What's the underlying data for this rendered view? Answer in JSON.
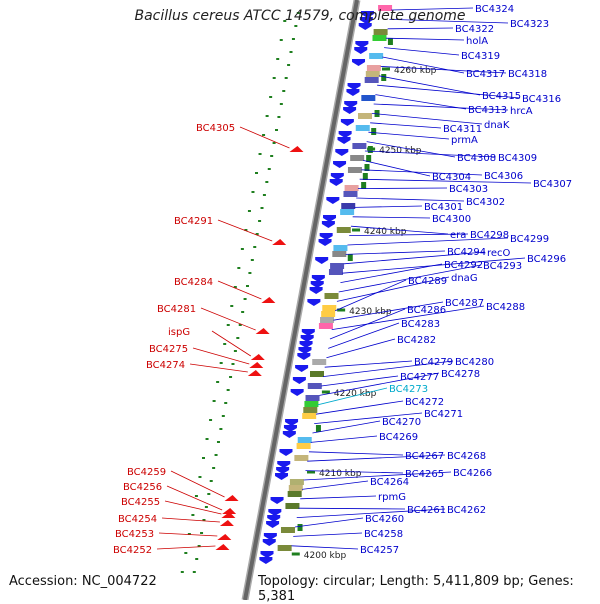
{
  "title": "Bacillus cereus ATCC 14579, complete genome",
  "footer": {
    "accession": "Accession: NC_004722",
    "summary": "Topology: circular; Length: 5,411,809 bp; Genes: 5,381"
  },
  "colors": {
    "backbone": "#666666",
    "forward_gene_label": "#0000cc",
    "reverse_gene_label": "#cc0000",
    "highlight_label": "#00aacc",
    "forward_arrow": "#1a1aee",
    "reverse_arrow": "#ee1111",
    "tick": "#1f7f1f"
  },
  "scale_ticks": [
    {
      "label": "4260 kbp",
      "kbp": 4260
    },
    {
      "label": "4250 kbp",
      "kbp": 4250
    },
    {
      "label": "4240 kbp",
      "kbp": 4240
    },
    {
      "label": "4230 kbp",
      "kbp": 4230
    },
    {
      "label": "4220 kbp",
      "kbp": 4220
    },
    {
      "label": "4210 kbp",
      "kbp": 4210
    },
    {
      "label": "4200 kbp",
      "kbp": 4200
    }
  ],
  "forward_labels": [
    "BC4324",
    "BC4323",
    "BC4322",
    "holA",
    "BC4319",
    "BC4317",
    "BC4318",
    "BC4315",
    "BC4316",
    "BC4313",
    "hrcA",
    "dnaK",
    "BC4311",
    "prmA",
    "BC4308",
    "BC4309",
    "BC4304",
    "BC4306",
    "BC4307",
    "BC4303",
    "BC4302",
    "BC4301",
    "BC4300",
    "era",
    "BC4298",
    "BC4299",
    "BC4294",
    "recO",
    "BC4296",
    "BC4292",
    "BC4293",
    "dnaG",
    "BC4289",
    "BC4287",
    "BC4288",
    "BC4286",
    "BC4283",
    "BC4282",
    "BC4279",
    "BC4280",
    "BC4277",
    "BC4278",
    "BC4273",
    "BC4272",
    "BC4271",
    "BC4270",
    "BC4269",
    "BC4267",
    "BC4268",
    "BC4265",
    "BC4266",
    "BC4264",
    "rpmG",
    "BC4261",
    "BC4262",
    "BC4260",
    "BC4258",
    "BC4257"
  ],
  "reverse_labels": [
    "BC4305",
    "BC4291",
    "BC4284",
    "BC4281",
    "ispG",
    "BC4275",
    "BC4274",
    "BC4259",
    "BC4256",
    "BC4255",
    "BC4254",
    "BC4253",
    "BC4252"
  ],
  "highlighted_label": "BC4273"
}
